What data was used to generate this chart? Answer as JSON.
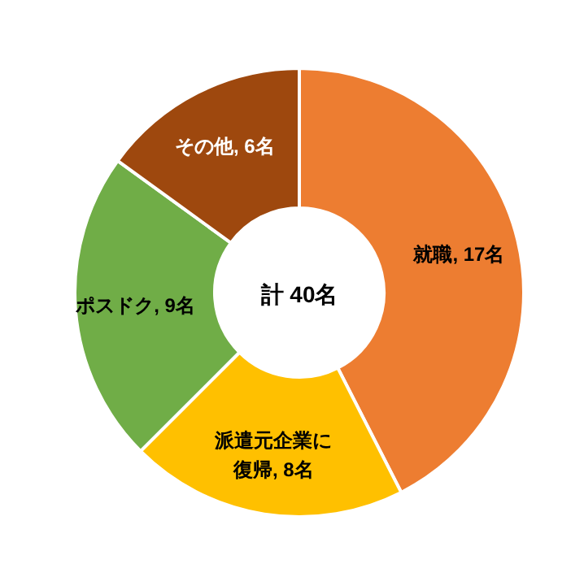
{
  "chart_data": {
    "type": "donut",
    "categories": [
      "就職",
      "派遣元企業に復帰",
      "ポスドク",
      "その他"
    ],
    "values": [
      17,
      8,
      9,
      6
    ],
    "value_labels": [
      "17名",
      "8名",
      "9名",
      "6名"
    ],
    "colors": [
      "#ed7d31",
      "#ffc000",
      "#70ad47",
      "#9e480e"
    ],
    "annotations": [
      "計 40名"
    ]
  }
}
